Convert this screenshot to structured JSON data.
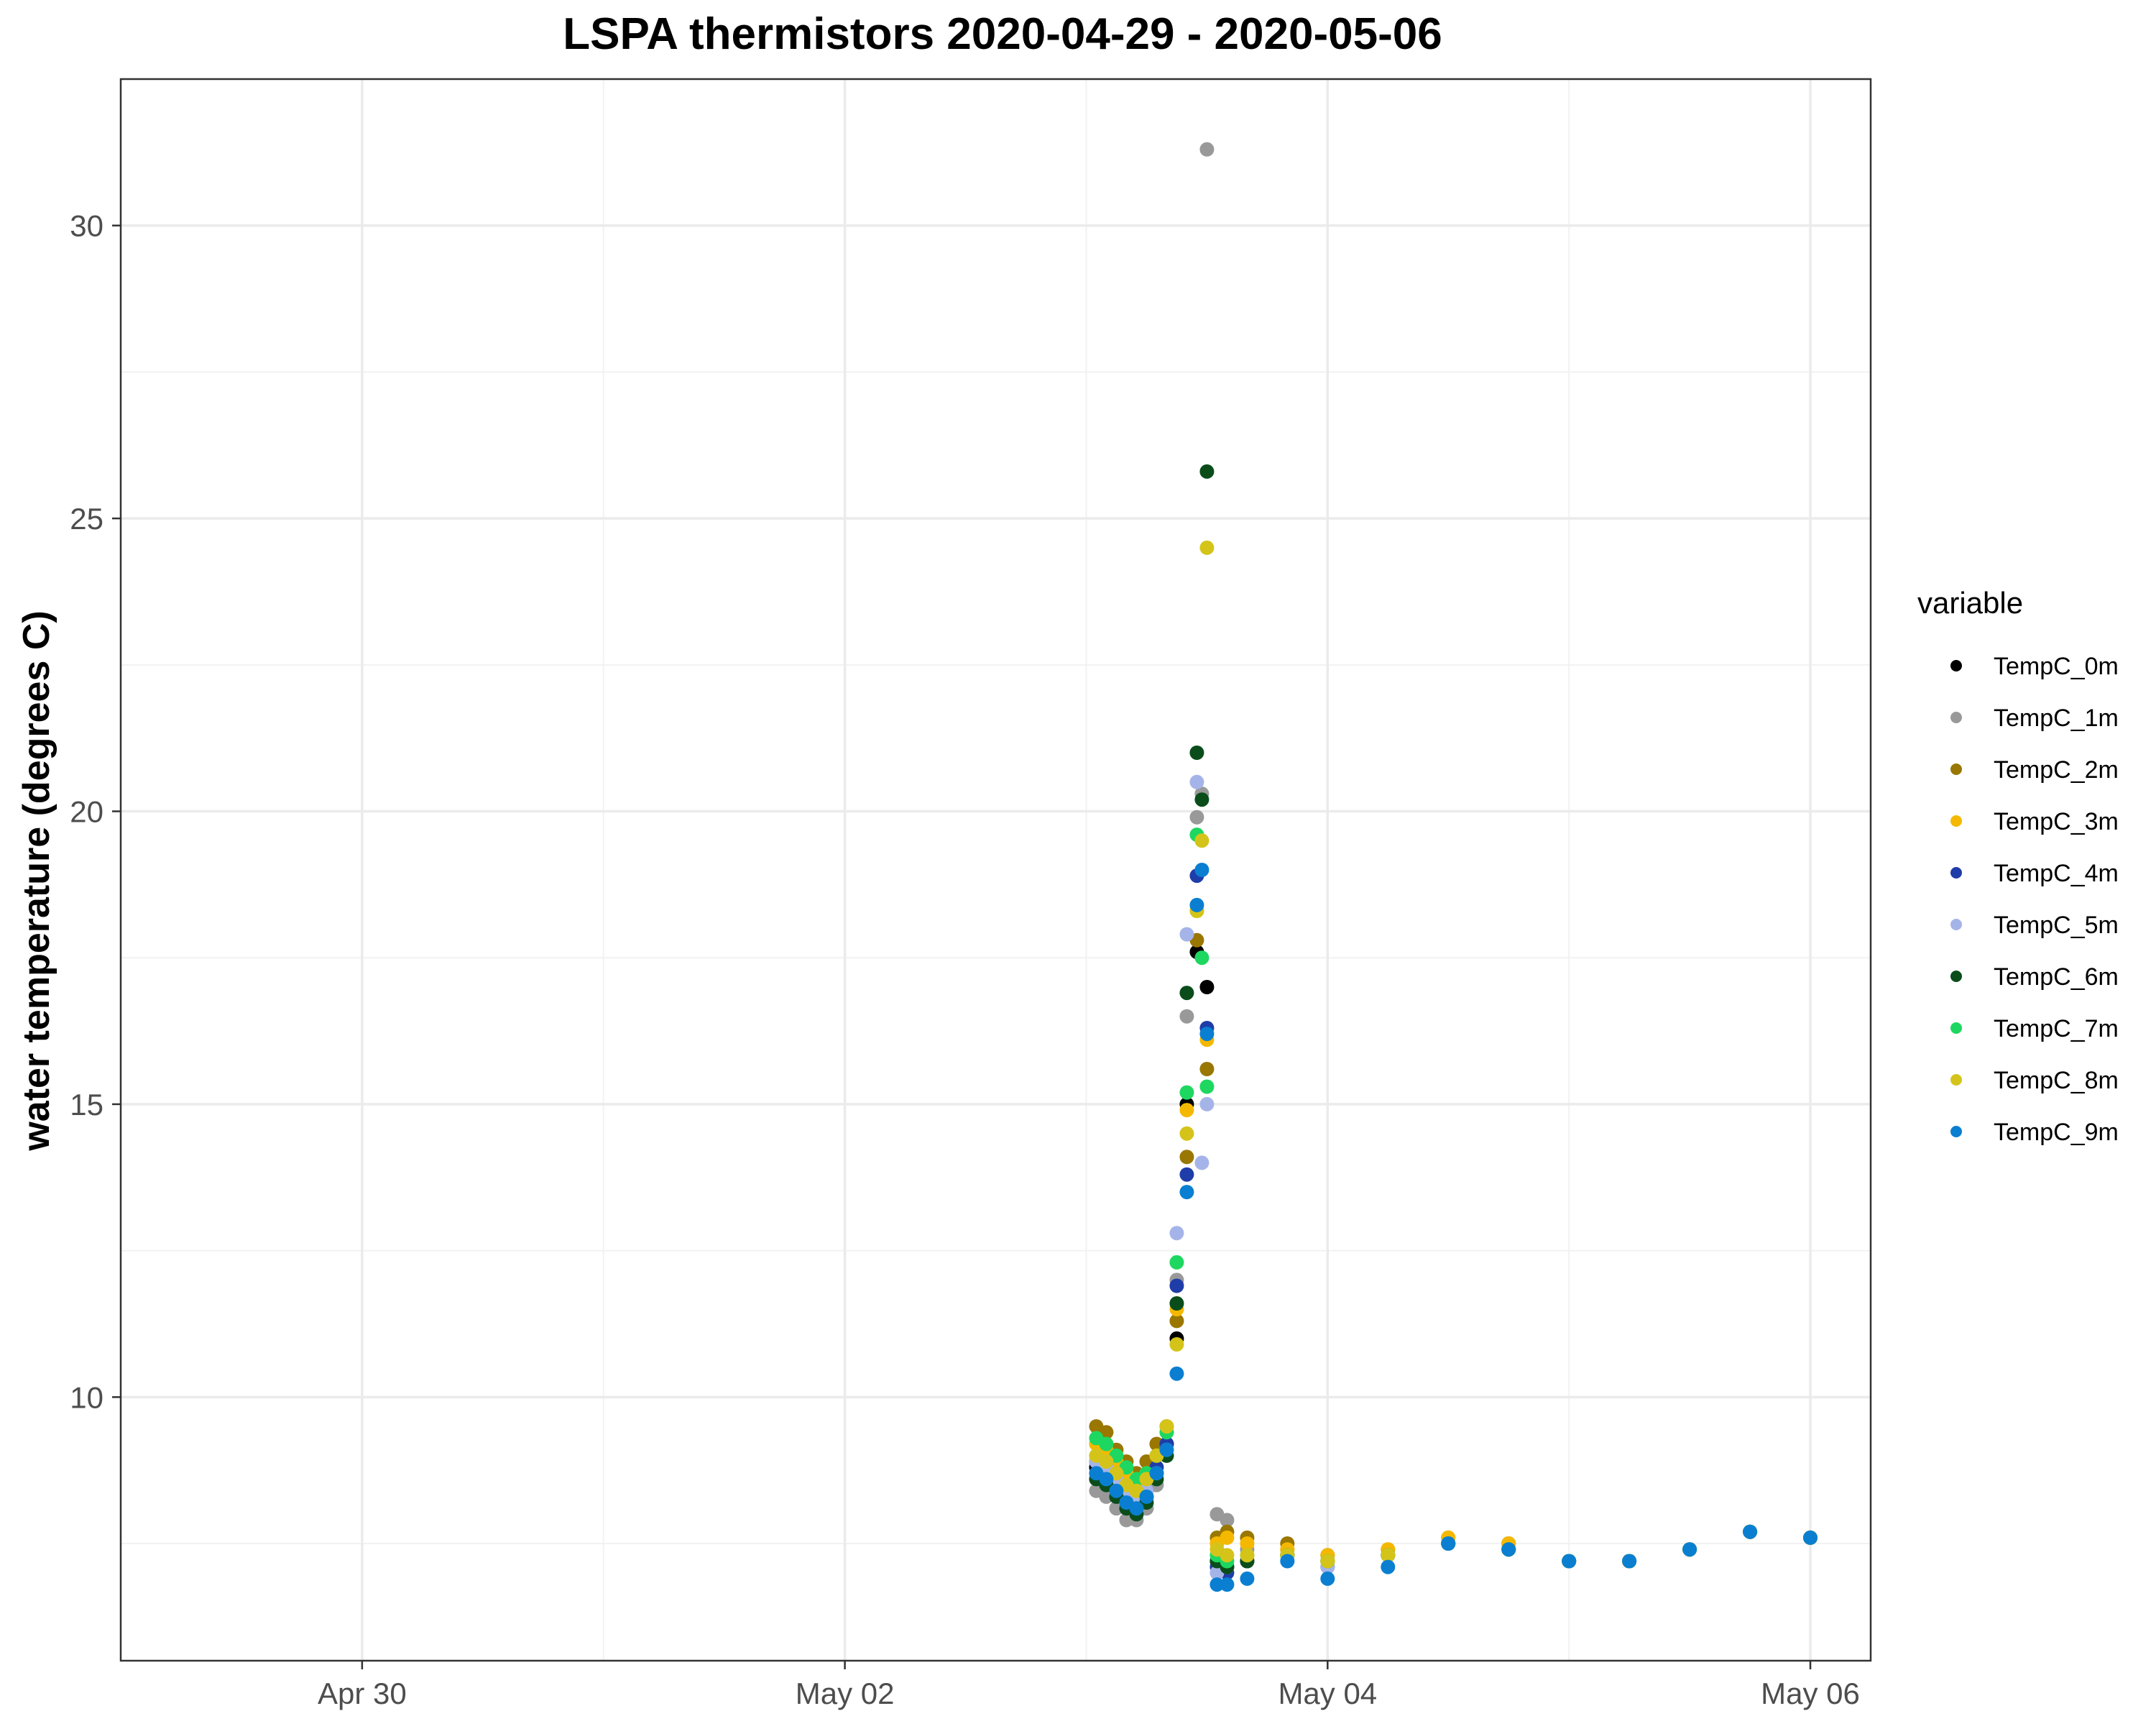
{
  "chart_data": {
    "type": "scatter",
    "title": "LSPA thermistors 2020-04-29 - 2020-05-06",
    "xlabel": "",
    "ylabel": "water temperature (degrees C)",
    "xlim": [
      "2020-04-29T00:00",
      "2020-05-06T06:00"
    ],
    "ylim": [
      5.5,
      32.5
    ],
    "x_ticks": [
      {
        "value": "2020-04-30T00:00",
        "label": "Apr 30"
      },
      {
        "value": "2020-05-02T00:00",
        "label": "May 02"
      },
      {
        "value": "2020-05-04T00:00",
        "label": "May 04"
      },
      {
        "value": "2020-05-06T00:00",
        "label": "May 06"
      }
    ],
    "y_ticks": [
      10,
      15,
      20,
      25,
      30
    ],
    "grid": true,
    "legend": {
      "title": "variable",
      "position": "right"
    },
    "series": [
      {
        "name": "TempC_0m",
        "color": "#000000",
        "x": [
          "2020-05-03T01:00",
          "2020-05-03T02:00",
          "2020-05-03T03:00",
          "2020-05-03T04:00",
          "2020-05-03T05:00",
          "2020-05-03T06:00",
          "2020-05-03T07:00",
          "2020-05-03T08:00",
          "2020-05-03T09:00",
          "2020-05-03T10:00",
          "2020-05-03T11:00",
          "2020-05-03T12:00",
          "2020-05-03T13:00",
          "2020-05-03T14:00",
          "2020-05-03T16:00",
          "2020-05-03T20:00",
          "2020-05-04T00:00",
          "2020-05-04T06:00",
          "2020-05-04T12:00",
          "2020-05-04T18:00",
          "2020-05-05T00:00",
          "2020-05-05T06:00",
          "2020-05-05T12:00",
          "2020-05-05T18:00",
          "2020-05-06T00:00"
        ],
        "y": [
          8.8,
          8.7,
          8.5,
          8.2,
          8.1,
          8.3,
          8.7,
          9.2,
          11.0,
          15.0,
          17.6,
          17.0,
          7.2,
          7.1,
          7.2,
          7.3,
          7.2,
          7.3,
          7.5,
          7.4,
          7.2,
          7.2,
          7.4,
          7.7,
          7.6
        ]
      },
      {
        "name": "TempC_1m",
        "color": "#999999",
        "x": [
          "2020-05-03T01:00",
          "2020-05-03T02:00",
          "2020-05-03T03:00",
          "2020-05-03T04:00",
          "2020-05-03T05:00",
          "2020-05-03T06:00",
          "2020-05-03T07:00",
          "2020-05-03T08:00",
          "2020-05-03T09:00",
          "2020-05-03T10:00",
          "2020-05-03T11:00",
          "2020-05-03T11:30",
          "2020-05-03T12:00",
          "2020-05-03T13:00",
          "2020-05-03T14:00",
          "2020-05-03T16:00",
          "2020-05-03T20:00",
          "2020-05-04T00:00",
          "2020-05-04T06:00",
          "2020-05-04T12:00",
          "2020-05-04T18:00",
          "2020-05-05T00:00",
          "2020-05-05T06:00",
          "2020-05-05T12:00",
          "2020-05-05T18:00",
          "2020-05-06T00:00"
        ],
        "y": [
          8.4,
          8.3,
          8.1,
          7.9,
          7.9,
          8.1,
          8.5,
          9.0,
          12.0,
          16.5,
          19.9,
          20.3,
          31.3,
          8.0,
          7.9,
          7.4,
          7.4,
          7.3,
          7.3,
          7.5,
          7.5,
          7.2,
          7.2,
          7.4,
          7.7,
          7.6
        ]
      },
      {
        "name": "TempC_2m",
        "color": "#997700",
        "x": [
          "2020-05-03T01:00",
          "2020-05-03T02:00",
          "2020-05-03T03:00",
          "2020-05-03T04:00",
          "2020-05-03T05:00",
          "2020-05-03T06:00",
          "2020-05-03T07:00",
          "2020-05-03T08:00",
          "2020-05-03T09:00",
          "2020-05-03T10:00",
          "2020-05-03T11:00",
          "2020-05-03T12:00",
          "2020-05-03T13:00",
          "2020-05-03T14:00",
          "2020-05-03T16:00",
          "2020-05-03T20:00",
          "2020-05-04T00:00",
          "2020-05-04T06:00",
          "2020-05-04T12:00",
          "2020-05-04T18:00",
          "2020-05-05T00:00",
          "2020-05-05T06:00",
          "2020-05-05T12:00",
          "2020-05-05T18:00",
          "2020-05-06T00:00"
        ],
        "y": [
          9.5,
          9.4,
          9.1,
          8.9,
          8.7,
          8.9,
          9.2,
          9.5,
          11.3,
          14.1,
          17.8,
          15.6,
          7.6,
          7.7,
          7.6,
          7.5,
          7.3,
          7.4,
          7.6,
          7.5,
          7.2,
          7.2,
          7.4,
          7.7,
          7.6
        ]
      },
      {
        "name": "TempC_3m",
        "color": "#f5b800",
        "x": [
          "2020-05-03T01:00",
          "2020-05-03T02:00",
          "2020-05-03T03:00",
          "2020-05-03T04:00",
          "2020-05-03T05:00",
          "2020-05-03T06:00",
          "2020-05-03T07:00",
          "2020-05-03T08:00",
          "2020-05-03T09:00",
          "2020-05-03T10:00",
          "2020-05-03T11:00",
          "2020-05-03T12:00",
          "2020-05-03T13:00",
          "2020-05-03T14:00",
          "2020-05-03T16:00",
          "2020-05-03T20:00",
          "2020-05-04T00:00",
          "2020-05-04T06:00",
          "2020-05-04T12:00",
          "2020-05-04T18:00",
          "2020-05-05T00:00",
          "2020-05-05T06:00",
          "2020-05-05T12:00",
          "2020-05-05T18:00",
          "2020-05-06T00:00"
        ],
        "y": [
          9.2,
          9.1,
          8.9,
          8.7,
          8.5,
          8.7,
          9.0,
          9.4,
          11.5,
          14.9,
          18.3,
          16.1,
          7.5,
          7.6,
          7.5,
          7.4,
          7.3,
          7.4,
          7.6,
          7.5,
          7.2,
          7.2,
          7.4,
          7.7,
          7.6
        ]
      },
      {
        "name": "TempC_4m",
        "color": "#1f3da8",
        "x": [
          "2020-05-03T01:00",
          "2020-05-03T02:00",
          "2020-05-03T03:00",
          "2020-05-03T04:00",
          "2020-05-03T05:00",
          "2020-05-03T06:00",
          "2020-05-03T07:00",
          "2020-05-03T08:00",
          "2020-05-03T09:00",
          "2020-05-03T10:00",
          "2020-05-03T11:00",
          "2020-05-03T12:00",
          "2020-05-03T13:00",
          "2020-05-03T14:00",
          "2020-05-03T16:00",
          "2020-05-03T20:00",
          "2020-05-04T00:00",
          "2020-05-04T06:00",
          "2020-05-04T12:00",
          "2020-05-04T18:00",
          "2020-05-05T00:00",
          "2020-05-05T06:00",
          "2020-05-05T12:00",
          "2020-05-05T18:00",
          "2020-05-06T00:00"
        ],
        "y": [
          8.9,
          8.8,
          8.6,
          8.3,
          8.2,
          8.4,
          8.8,
          9.2,
          11.9,
          13.8,
          18.9,
          16.3,
          7.1,
          7.0,
          7.2,
          7.3,
          7.1,
          7.3,
          7.5,
          7.4,
          7.2,
          7.2,
          7.4,
          7.7,
          7.6
        ]
      },
      {
        "name": "TempC_5m",
        "color": "#a5b4e8",
        "x": [
          "2020-05-03T01:00",
          "2020-05-03T02:00",
          "2020-05-03T03:00",
          "2020-05-03T04:00",
          "2020-05-03T05:00",
          "2020-05-03T06:00",
          "2020-05-03T07:00",
          "2020-05-03T08:00",
          "2020-05-03T09:00",
          "2020-05-03T10:00",
          "2020-05-03T11:00",
          "2020-05-03T11:30",
          "2020-05-03T12:00",
          "2020-05-03T13:00",
          "2020-05-03T14:00",
          "2020-05-03T16:00",
          "2020-05-03T20:00",
          "2020-05-04T00:00",
          "2020-05-04T06:00",
          "2020-05-04T12:00",
          "2020-05-04T18:00",
          "2020-05-05T00:00",
          "2020-05-05T06:00",
          "2020-05-05T12:00",
          "2020-05-05T18:00",
          "2020-05-06T00:00"
        ],
        "y": [
          8.9,
          8.8,
          8.6,
          8.3,
          8.2,
          8.4,
          8.7,
          9.1,
          12.8,
          17.9,
          20.5,
          14.0,
          15.0,
          7.0,
          7.1,
          7.2,
          7.3,
          7.1,
          7.3,
          7.5,
          7.4,
          7.2,
          7.2,
          7.4,
          7.7,
          7.6
        ]
      },
      {
        "name": "TempC_6m",
        "color": "#0a4d1a",
        "x": [
          "2020-05-03T01:00",
          "2020-05-03T02:00",
          "2020-05-03T03:00",
          "2020-05-03T04:00",
          "2020-05-03T05:00",
          "2020-05-03T06:00",
          "2020-05-03T07:00",
          "2020-05-03T08:00",
          "2020-05-03T09:00",
          "2020-05-03T10:00",
          "2020-05-03T11:00",
          "2020-05-03T11:30",
          "2020-05-03T12:00",
          "2020-05-03T13:00",
          "2020-05-03T14:00",
          "2020-05-03T16:00",
          "2020-05-03T20:00",
          "2020-05-04T00:00",
          "2020-05-04T06:00",
          "2020-05-04T12:00",
          "2020-05-04T18:00",
          "2020-05-05T00:00",
          "2020-05-05T06:00",
          "2020-05-05T12:00",
          "2020-05-05T18:00",
          "2020-05-06T00:00"
        ],
        "y": [
          8.6,
          8.5,
          8.3,
          8.1,
          8.0,
          8.2,
          8.6,
          9.0,
          11.6,
          16.9,
          21.0,
          20.2,
          25.8,
          7.2,
          7.1,
          7.2,
          7.3,
          7.2,
          7.3,
          7.5,
          7.4,
          7.2,
          7.2,
          7.4,
          7.7,
          7.6
        ]
      },
      {
        "name": "TempC_7m",
        "color": "#1ed760",
        "x": [
          "2020-05-03T01:00",
          "2020-05-03T02:00",
          "2020-05-03T03:00",
          "2020-05-03T04:00",
          "2020-05-03T05:00",
          "2020-05-03T06:00",
          "2020-05-03T07:00",
          "2020-05-03T08:00",
          "2020-05-03T09:00",
          "2020-05-03T10:00",
          "2020-05-03T11:00",
          "2020-05-03T11:30",
          "2020-05-03T12:00",
          "2020-05-03T13:00",
          "2020-05-03T14:00",
          "2020-05-03T16:00",
          "2020-05-03T20:00",
          "2020-05-04T00:00",
          "2020-05-04T06:00",
          "2020-05-04T12:00",
          "2020-05-04T18:00",
          "2020-05-05T00:00",
          "2020-05-05T06:00",
          "2020-05-05T12:00",
          "2020-05-05T18:00",
          "2020-05-06T00:00"
        ],
        "y": [
          9.3,
          9.2,
          9.0,
          8.8,
          8.6,
          8.7,
          9.0,
          9.4,
          12.3,
          15.2,
          19.6,
          17.5,
          15.3,
          7.3,
          7.2,
          7.3,
          7.3,
          7.2,
          7.3,
          7.5,
          7.4,
          7.2,
          7.2,
          7.4,
          7.7,
          7.6
        ]
      },
      {
        "name": "TempC_8m",
        "color": "#d4c41a",
        "x": [
          "2020-05-03T01:00",
          "2020-05-03T02:00",
          "2020-05-03T03:00",
          "2020-05-03T04:00",
          "2020-05-03T05:00",
          "2020-05-03T06:00",
          "2020-05-03T07:00",
          "2020-05-03T08:00",
          "2020-05-03T09:00",
          "2020-05-03T10:00",
          "2020-05-03T11:00",
          "2020-05-03T11:30",
          "2020-05-03T12:00",
          "2020-05-03T13:00",
          "2020-05-03T14:00",
          "2020-05-03T16:00",
          "2020-05-03T20:00",
          "2020-05-04T00:00",
          "2020-05-04T06:00",
          "2020-05-04T12:00",
          "2020-05-04T18:00",
          "2020-05-05T00:00",
          "2020-05-05T06:00",
          "2020-05-05T12:00",
          "2020-05-05T18:00",
          "2020-05-06T00:00"
        ],
        "y": [
          9.0,
          8.9,
          8.7,
          8.5,
          8.4,
          8.6,
          9.0,
          9.5,
          10.9,
          14.5,
          18.3,
          19.5,
          24.5,
          7.4,
          7.3,
          7.3,
          7.3,
          7.2,
          7.3,
          7.5,
          7.4,
          7.2,
          7.2,
          7.4,
          7.7,
          7.6
        ]
      },
      {
        "name": "TempC_9m",
        "color": "#0a7fd1",
        "x": [
          "2020-05-03T01:00",
          "2020-05-03T02:00",
          "2020-05-03T03:00",
          "2020-05-03T04:00",
          "2020-05-03T05:00",
          "2020-05-03T06:00",
          "2020-05-03T07:00",
          "2020-05-03T08:00",
          "2020-05-03T09:00",
          "2020-05-03T10:00",
          "2020-05-03T11:00",
          "2020-05-03T11:30",
          "2020-05-03T12:00",
          "2020-05-03T13:00",
          "2020-05-03T14:00",
          "2020-05-03T16:00",
          "2020-05-03T20:00",
          "2020-05-04T00:00",
          "2020-05-04T06:00",
          "2020-05-04T12:00",
          "2020-05-04T18:00",
          "2020-05-05T00:00",
          "2020-05-05T06:00",
          "2020-05-05T12:00",
          "2020-05-05T18:00",
          "2020-05-06T00:00"
        ],
        "y": [
          8.7,
          8.6,
          8.4,
          8.2,
          8.1,
          8.3,
          8.7,
          9.1,
          10.4,
          13.5,
          18.4,
          19.0,
          16.2,
          6.8,
          6.8,
          6.9,
          7.2,
          6.9,
          7.1,
          7.5,
          7.4,
          7.2,
          7.2,
          7.4,
          7.7,
          7.6
        ]
      }
    ]
  }
}
